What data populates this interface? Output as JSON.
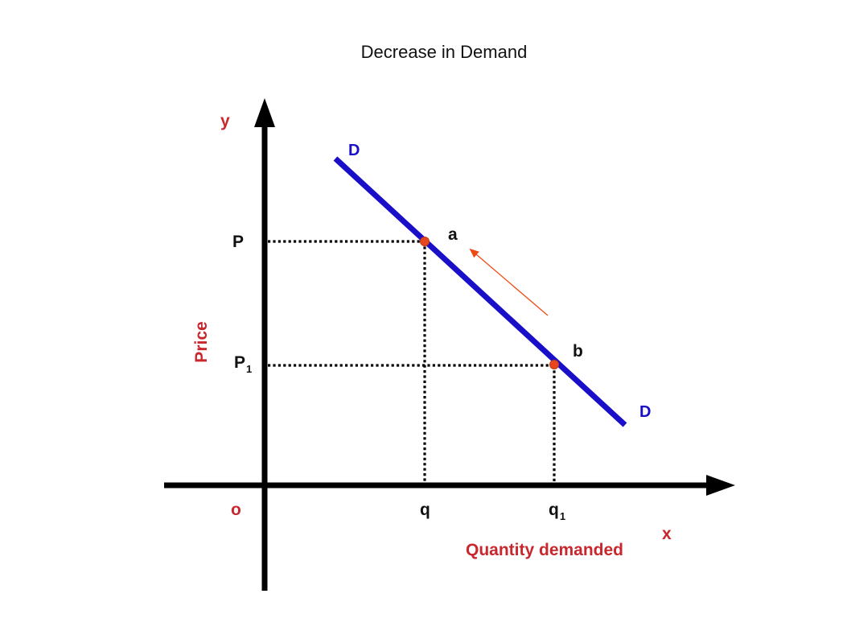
{
  "title": "Decrease in Demand",
  "axes": {
    "x_axis_name": "x",
    "y_axis_name": "y",
    "x_label": "Quantity demanded",
    "y_label": "Price",
    "origin_label": "o"
  },
  "curve": {
    "label_top": "D",
    "label_bottom": "D"
  },
  "points": {
    "a": {
      "label": "a"
    },
    "b": {
      "label": "b"
    }
  },
  "price_levels": {
    "p": {
      "main": "P",
      "sub": ""
    },
    "p1": {
      "main": "P",
      "sub": "1"
    }
  },
  "quantity_levels": {
    "q": {
      "main": "q",
      "sub": ""
    },
    "q1": {
      "main": "q",
      "sub": "1"
    }
  },
  "colors": {
    "curve": "#1a0fc8",
    "curve_label": "#1a0fc8",
    "axis_label": "#c8272d",
    "point": "#e8461e",
    "arrow": "#ee4a14",
    "axis": "#000000",
    "guide": "#000000"
  }
}
